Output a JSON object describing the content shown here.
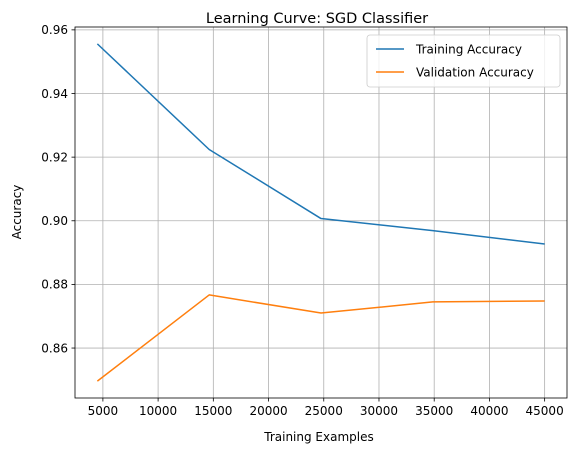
{
  "chart_data": {
    "type": "line",
    "title": "Learning Curve: SGD Classifier",
    "xlabel": "Training Examples",
    "ylabel": "Accuracy",
    "x": [
      4500,
      14625,
      24750,
      34875,
      45000
    ],
    "series": [
      {
        "name": "Training Accuracy",
        "color": "#1f77b4",
        "values": [
          0.9556,
          0.9224,
          0.9007,
          0.8969,
          0.8927
        ]
      },
      {
        "name": "Validation Accuracy",
        "color": "#ff7f0e",
        "values": [
          0.8496,
          0.8767,
          0.871,
          0.8745,
          0.8748
        ]
      }
    ],
    "xlim": [
      2475,
      47025
    ],
    "ylim": [
      0.8443,
      0.9609
    ],
    "xticks": [
      5000,
      10000,
      15000,
      20000,
      25000,
      30000,
      35000,
      40000,
      45000
    ],
    "xtick_labels": [
      "5000",
      "10000",
      "15000",
      "20000",
      "25000",
      "30000",
      "35000",
      "40000",
      "45000"
    ],
    "yticks": [
      0.86,
      0.88,
      0.9,
      0.92,
      0.94,
      0.96
    ],
    "ytick_labels": [
      "0.86",
      "0.88",
      "0.90",
      "0.92",
      "0.94",
      "0.96"
    ],
    "grid": true,
    "legend_position": "top-right"
  }
}
